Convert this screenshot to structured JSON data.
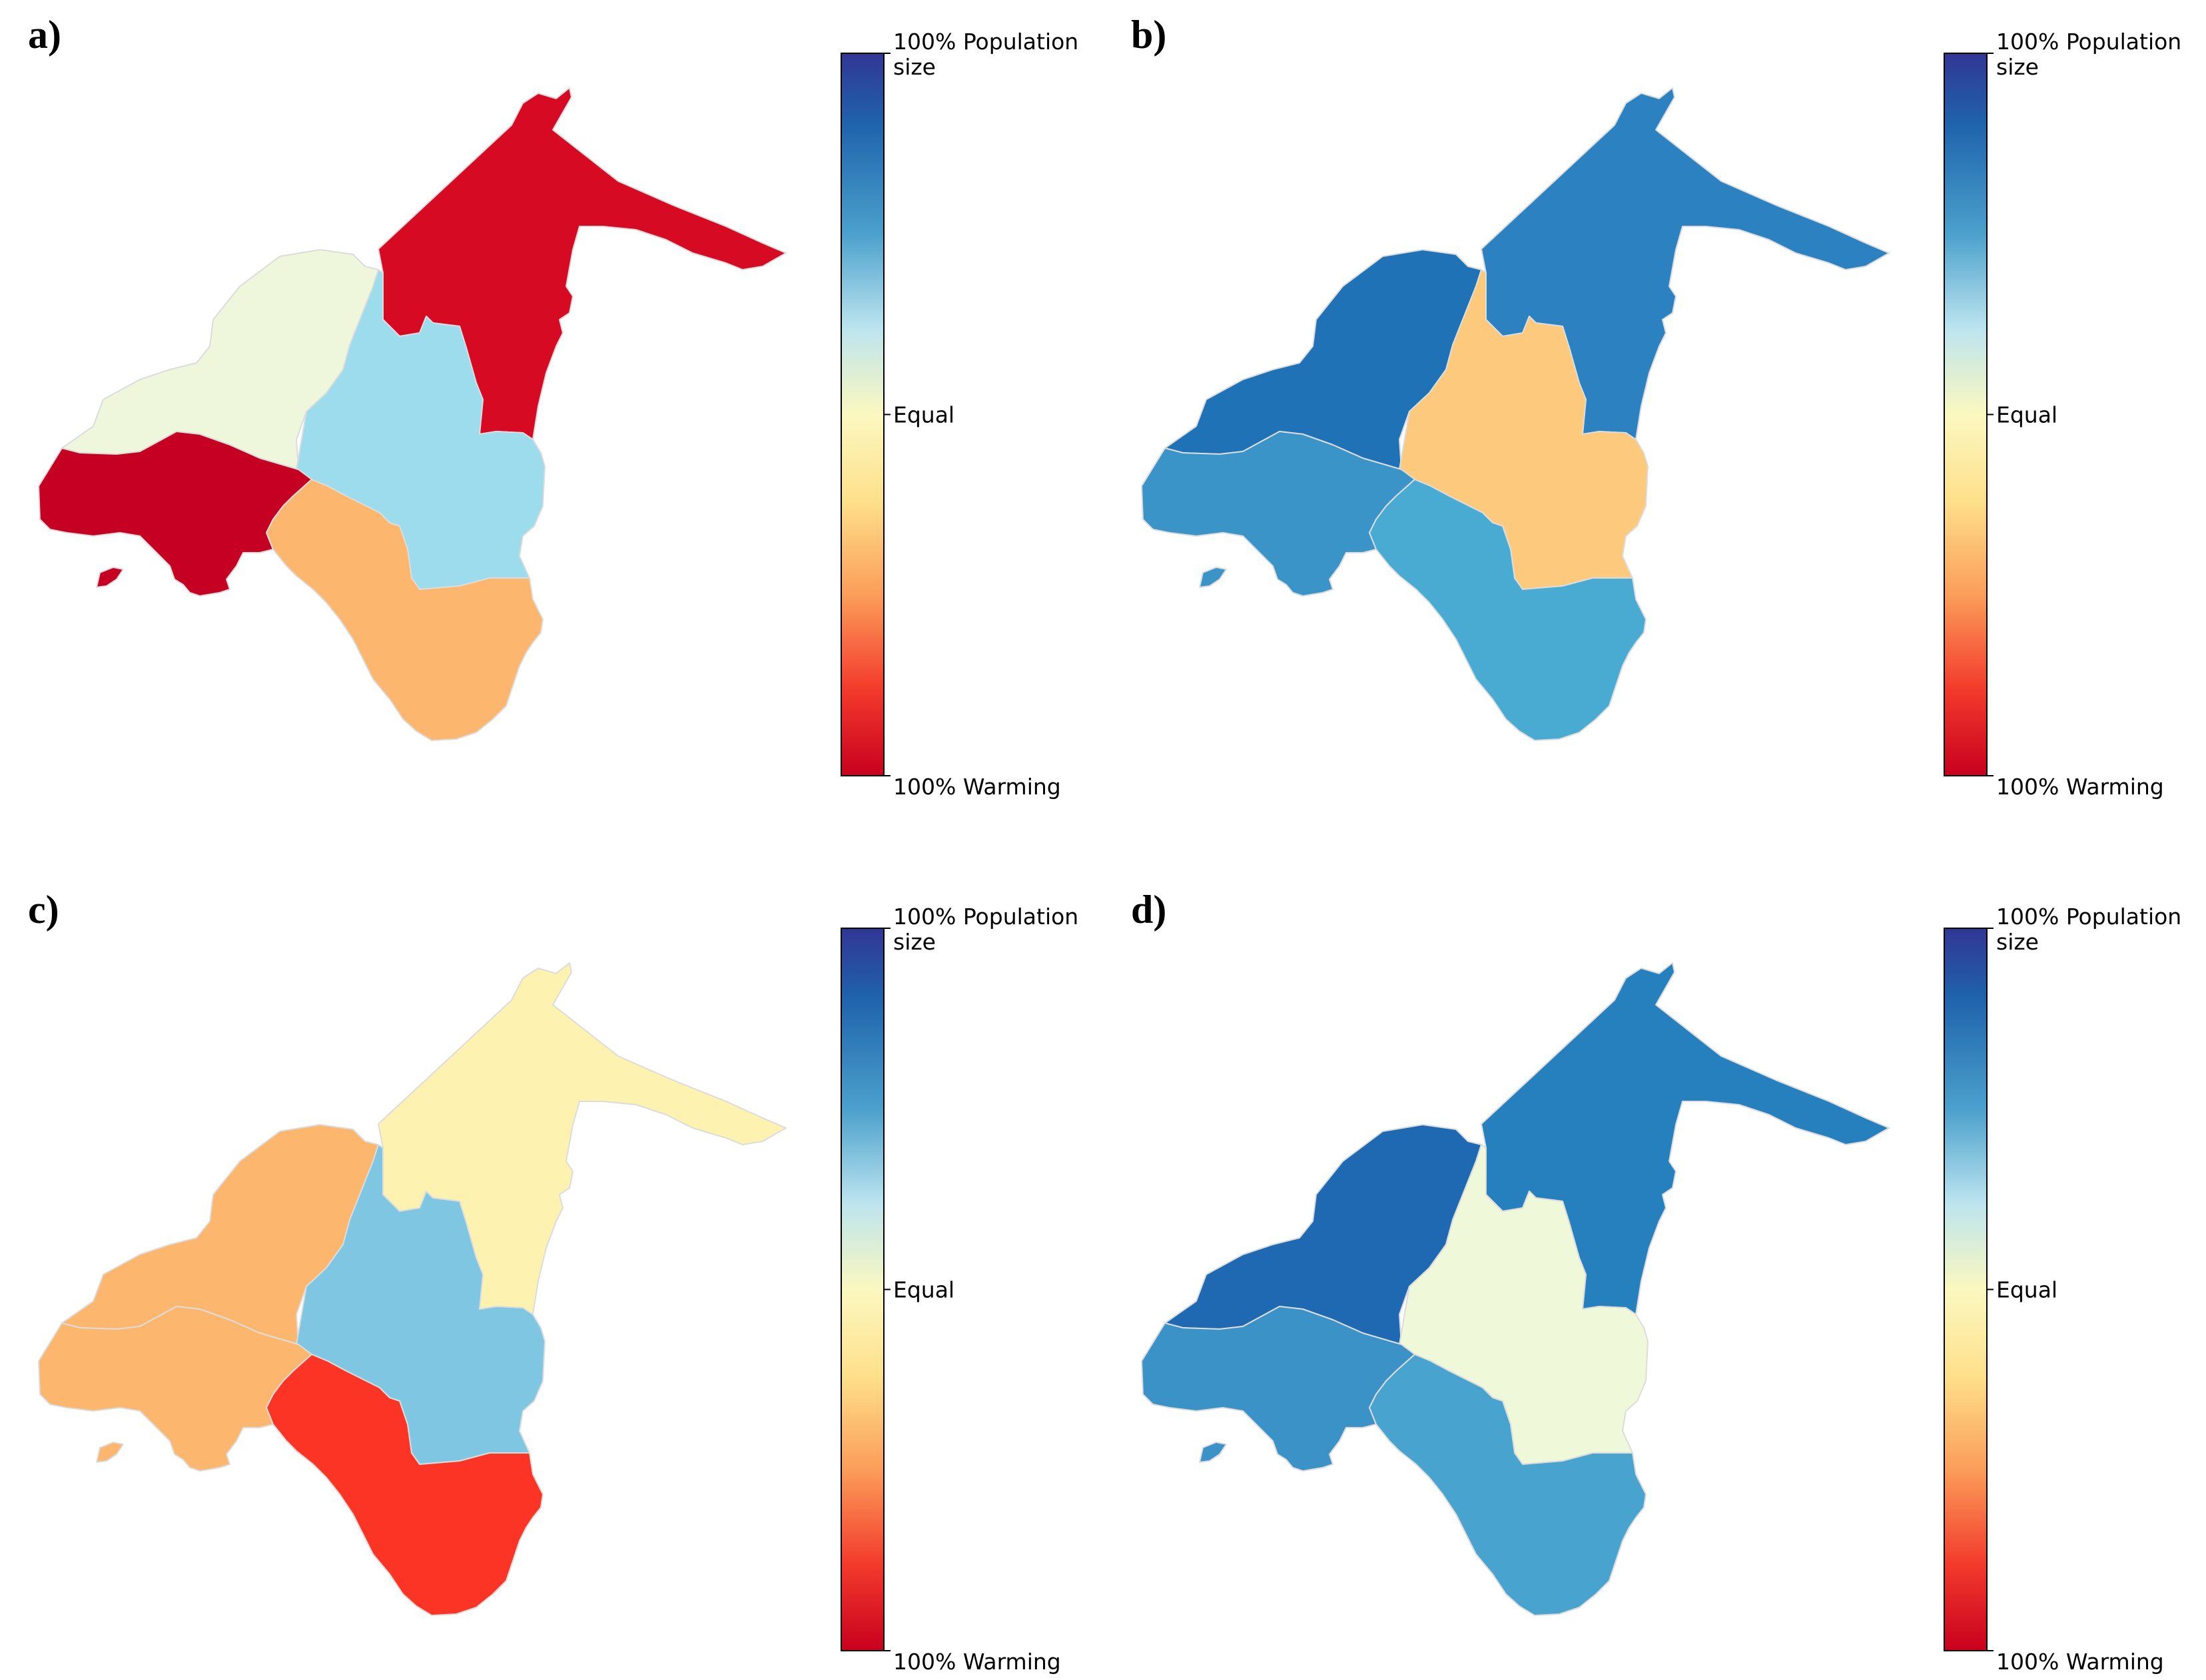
{
  "colors": {
    "scale_top": "#313695",
    "scale_mid": "#fbf8c0",
    "scale_bottom": "#c8001e",
    "region_border": "#dcdcdc",
    "background": "#ffffff"
  },
  "colorbar": {
    "top_label_line1": "100% Population",
    "top_label_line2": "size",
    "mid_label": "Equal",
    "bottom_label": "100% Warming"
  },
  "regions": [
    "northeast",
    "northwest",
    "central",
    "west",
    "south"
  ],
  "panels": [
    {
      "label": "a)",
      "fills": {
        "northeast": "#d60a23",
        "northwest": "#eef7dc",
        "central": "#9cdcec",
        "west": "#c50022",
        "south": "#fdb66d"
      }
    },
    {
      "label": "b)",
      "fills": {
        "northeast": "#2c82c0",
        "northwest": "#1f72b6",
        "central": "#fdc97c",
        "west": "#3b94c8",
        "south": "#4aabd2"
      }
    },
    {
      "label": "c)",
      "fills": {
        "northeast": "#fef2b0",
        "northwest": "#fdb66d",
        "central": "#7ec6e2",
        "west": "#fdb66d",
        "south": "#fb3426"
      }
    },
    {
      "label": "d)",
      "fills": {
        "northeast": "#2780be",
        "northwest": "#1f69b2",
        "central": "#eff8d9",
        "west": "#3a92c7",
        "south": "#48a4cf"
      }
    }
  ]
}
